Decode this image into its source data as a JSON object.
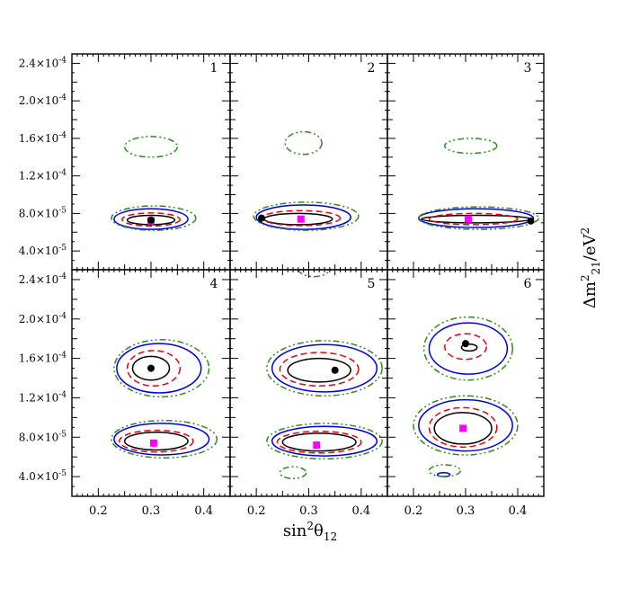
{
  "chart_data": {
    "type": "contour",
    "layout": "2x3 grid of panels",
    "xlabel": "sin²θ₁₂",
    "ylabel": "Δm²₂₁/eV²",
    "xlim": [
      0.15,
      0.45
    ],
    "ylim": [
      2e-05,
      0.00025
    ],
    "x_ticks": [
      {
        "value": 0.2,
        "label": "0.2"
      },
      {
        "value": 0.3,
        "label": "0.3"
      },
      {
        "value": 0.4,
        "label": "0.4"
      }
    ],
    "y_ticks": [
      {
        "value": 4e-05,
        "mant": "4.0×10",
        "exp": "-5"
      },
      {
        "value": 8e-05,
        "mant": "8.0×10",
        "exp": "-5"
      },
      {
        "value": 0.00012,
        "mant": "1.2×10",
        "exp": "-4"
      },
      {
        "value": 0.00016,
        "mant": "1.6×10",
        "exp": "-4"
      },
      {
        "value": 0.0002,
        "mant": "2.0×10",
        "exp": "-4"
      },
      {
        "value": 0.00024,
        "mant": "2.4×10",
        "exp": "-4"
      }
    ],
    "contour_styles": {
      "cl1": {
        "color": "#000000",
        "dash": "solid"
      },
      "cl2": {
        "color": "#e8000b",
        "dash": "dashed"
      },
      "cl3": {
        "color": "#0000e6",
        "dash": "solid"
      },
      "cl4": {
        "color": "#2e8b1e",
        "dash": "dash-dot-dot"
      }
    },
    "marker_colors": {
      "best_fit": "#000000",
      "reference": "#ff00ff"
    },
    "panels": [
      {
        "label": "1",
        "best_fit": {
          "x": 0.3,
          "y": 7.3e-05
        },
        "reference": {
          "x": 0.3,
          "y": 7.2e-05
        },
        "contours": [
          {
            "level": "cl1",
            "cx": 0.3,
            "cy": 7.3e-05,
            "rx": 0.045,
            "ry": 5e-06
          },
          {
            "level": "cl2",
            "cx": 0.3,
            "cy": 7.35e-05,
            "rx": 0.055,
            "ry": 7e-06
          },
          {
            "level": "cl3",
            "cx": 0.3,
            "cy": 7.4e-05,
            "rx": 0.07,
            "ry": 1.1e-05
          },
          {
            "level": "cl4",
            "cx": 0.305,
            "cy": 7.5e-05,
            "rx": 0.08,
            "ry": 1.3e-05
          },
          {
            "level": "cl4",
            "cx": 0.3,
            "cy": 0.000151,
            "rx": 0.05,
            "ry": 1.1e-05
          }
        ]
      },
      {
        "label": "2",
        "best_fit": {
          "x": 0.21,
          "y": 7.5e-05
        },
        "reference": {
          "x": 0.285,
          "y": 7.4e-05
        },
        "contours": [
          {
            "level": "cl1",
            "cx": 0.28,
            "cy": 7.4e-05,
            "rx": 0.065,
            "ry": 6e-06
          },
          {
            "level": "cl2",
            "cx": 0.285,
            "cy": 7.5e-05,
            "rx": 0.075,
            "ry": 8e-06
          },
          {
            "level": "cl3",
            "cx": 0.29,
            "cy": 7.6e-05,
            "rx": 0.09,
            "ry": 1.3e-05
          },
          {
            "level": "cl4",
            "cx": 0.295,
            "cy": 7.7e-05,
            "rx": 0.1,
            "ry": 1.5e-05
          },
          {
            "level": "cl4",
            "cx": 0.29,
            "cy": 0.000155,
            "rx": 0.035,
            "ry": 1.2e-05
          }
        ]
      },
      {
        "label": "3",
        "best_fit": {
          "x": 0.425,
          "y": 7.2e-05
        },
        "reference": {
          "x": 0.305,
          "y": 7.4e-05
        },
        "contours": [
          {
            "level": "cl1",
            "cx": 0.32,
            "cy": 7.4e-05,
            "rx": 0.105,
            "ry": 4e-06
          },
          {
            "level": "cl2",
            "cx": 0.315,
            "cy": 7.4e-05,
            "rx": 0.085,
            "ry": 6e-06
          },
          {
            "level": "cl3",
            "cx": 0.32,
            "cy": 7.5e-05,
            "rx": 0.11,
            "ry": 1e-05
          },
          {
            "level": "cl4",
            "cx": 0.325,
            "cy": 7.5e-05,
            "rx": 0.115,
            "ry": 1.2e-05
          },
          {
            "level": "cl4",
            "cx": 0.31,
            "cy": 0.000152,
            "rx": 0.05,
            "ry": 8e-06
          }
        ]
      },
      {
        "label": "4",
        "best_fit": {
          "x": 0.3,
          "y": 0.00015
        },
        "reference": {
          "x": 0.305,
          "y": 7.4e-05
        },
        "contours": [
          {
            "level": "cl1",
            "cx": 0.3,
            "cy": 0.00015,
            "rx": 0.035,
            "ry": 1.2e-05
          },
          {
            "level": "cl2",
            "cx": 0.305,
            "cy": 0.00015,
            "rx": 0.05,
            "ry": 1.8e-05
          },
          {
            "level": "cl3",
            "cx": 0.315,
            "cy": 0.00015,
            "rx": 0.08,
            "ry": 2.5e-05
          },
          {
            "level": "cl4",
            "cx": 0.32,
            "cy": 0.00015,
            "rx": 0.09,
            "ry": 2.9e-05
          },
          {
            "level": "cl1",
            "cx": 0.31,
            "cy": 7.6e-05,
            "rx": 0.06,
            "ry": 9e-06
          },
          {
            "level": "cl2",
            "cx": 0.31,
            "cy": 7.6e-05,
            "rx": 0.07,
            "ry": 1.1e-05
          },
          {
            "level": "cl3",
            "cx": 0.32,
            "cy": 7.8e-05,
            "rx": 0.09,
            "ry": 1.6e-05
          },
          {
            "level": "cl4",
            "cx": 0.325,
            "cy": 7.8e-05,
            "rx": 0.1,
            "ry": 1.9e-05
          }
        ]
      },
      {
        "label": "5",
        "best_fit": {
          "x": 0.35,
          "y": 0.000148
        },
        "reference": {
          "x": 0.315,
          "y": 7.2e-05
        },
        "contours": [
          {
            "level": "cl1",
            "cx": 0.32,
            "cy": 0.000148,
            "rx": 0.06,
            "ry": 1.2e-05
          },
          {
            "level": "cl2",
            "cx": 0.32,
            "cy": 0.000149,
            "rx": 0.075,
            "ry": 1.7e-05
          },
          {
            "level": "cl3",
            "cx": 0.33,
            "cy": 0.00015,
            "rx": 0.1,
            "ry": 2.4e-05
          },
          {
            "level": "cl4",
            "cx": 0.33,
            "cy": 0.00015,
            "rx": 0.11,
            "ry": 2.8e-05
          },
          {
            "level": "cl1",
            "cx": 0.32,
            "cy": 7.5e-05,
            "rx": 0.07,
            "ry": 9e-06
          },
          {
            "level": "cl2",
            "cx": 0.32,
            "cy": 7.5e-05,
            "rx": 0.08,
            "ry": 1.1e-05
          },
          {
            "level": "cl3",
            "cx": 0.33,
            "cy": 7.6e-05,
            "rx": 0.1,
            "ry": 1.5e-05
          },
          {
            "level": "cl4",
            "cx": 0.33,
            "cy": 7.6e-05,
            "rx": 0.11,
            "ry": 1.8e-05
          },
          {
            "level": "cl4",
            "cx": 0.27,
            "cy": 4.4e-05,
            "rx": 0.025,
            "ry": 6e-06
          },
          {
            "level": "cl4",
            "cx": 0.31,
            "cy": 0.000255,
            "rx": 0.035,
            "ry": 1.2e-05
          }
        ]
      },
      {
        "label": "6",
        "best_fit": {
          "x": 0.3,
          "y": 0.000175
        },
        "reference": {
          "x": 0.295,
          "y": 8.9e-05
        },
        "contours": [
          {
            "level": "cl1",
            "cx": 0.307,
            "cy": 0.000171,
            "rx": 0.015,
            "ry": 3.5e-06
          },
          {
            "level": "cl2",
            "cx": 0.3,
            "cy": 0.000172,
            "rx": 0.04,
            "ry": 1.3e-05
          },
          {
            "level": "cl3",
            "cx": 0.305,
            "cy": 0.00017,
            "rx": 0.075,
            "ry": 2.6e-05
          },
          {
            "level": "cl4",
            "cx": 0.305,
            "cy": 0.00017,
            "rx": 0.085,
            "ry": 3.2e-05
          },
          {
            "level": "cl1",
            "cx": 0.295,
            "cy": 8.9e-05,
            "rx": 0.055,
            "ry": 1.6e-05
          },
          {
            "level": "cl2",
            "cx": 0.295,
            "cy": 9e-05,
            "rx": 0.065,
            "ry": 2e-05
          },
          {
            "level": "cl3",
            "cx": 0.3,
            "cy": 9.2e-05,
            "rx": 0.09,
            "ry": 2.6e-05
          },
          {
            "level": "cl4",
            "cx": 0.3,
            "cy": 9.2e-05,
            "rx": 0.1,
            "ry": 3e-05
          },
          {
            "level": "cl3",
            "cx": 0.258,
            "cy": 4.2e-05,
            "rx": 0.012,
            "ry": 2e-06
          },
          {
            "level": "cl4",
            "cx": 0.26,
            "cy": 4.6e-05,
            "rx": 0.03,
            "ry": 6e-06
          }
        ]
      }
    ]
  }
}
